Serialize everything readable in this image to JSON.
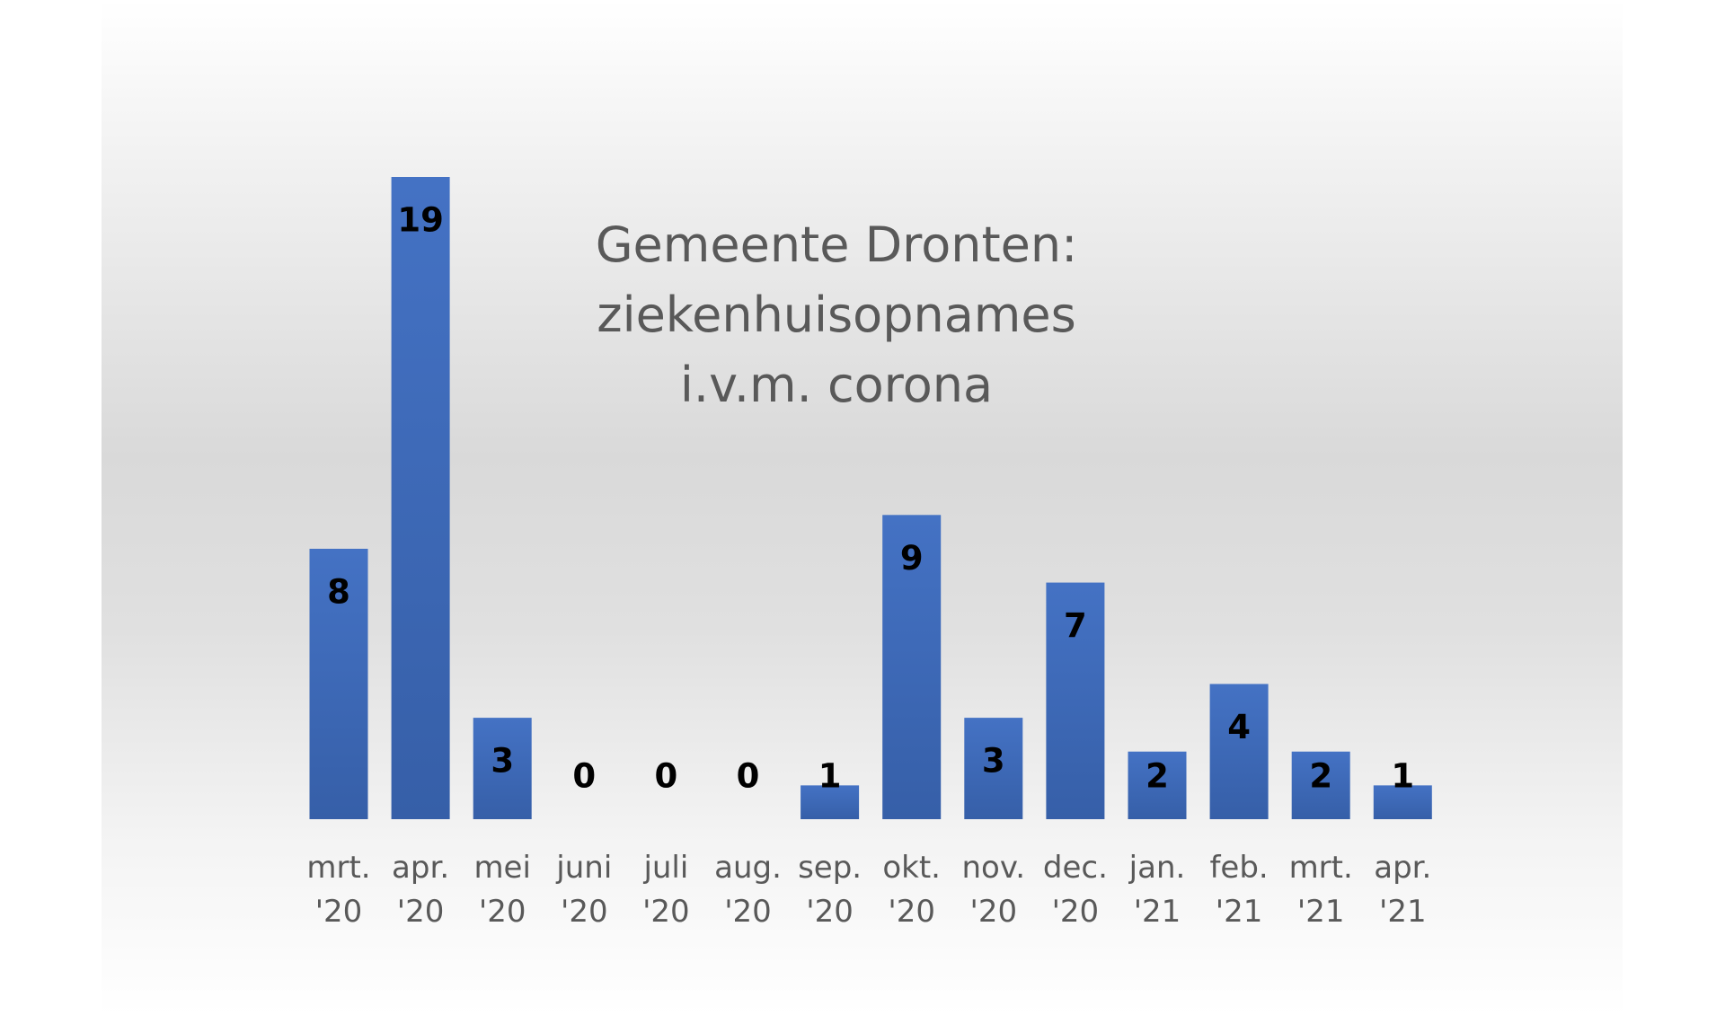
{
  "chart_data": {
    "type": "bar",
    "title": "Gemeente Dronten: ziekenhuisopnames i.v.m. corona",
    "categories": [
      "mrt. '20",
      "apr. '20",
      "mei '20",
      "juni '20",
      "juli '20",
      "aug. '20",
      "sep. '20",
      "okt. '20",
      "nov. '20",
      "dec. '20",
      "jan. '21",
      "feb. '21",
      "mrt. '21",
      "apr. '21"
    ],
    "values": [
      8,
      19,
      3,
      0,
      0,
      0,
      1,
      9,
      3,
      7,
      2,
      4,
      2,
      1
    ],
    "color": "#4472c4"
  }
}
